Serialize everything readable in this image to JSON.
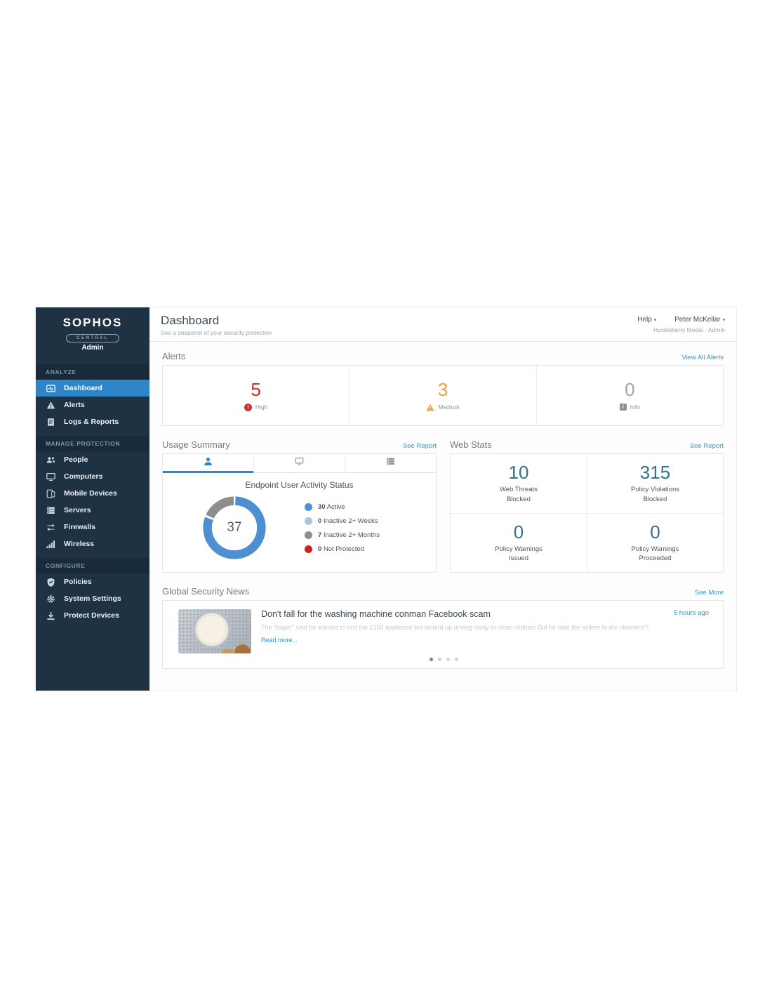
{
  "colors": {
    "sidebar_bg": "#1f3244",
    "active_item": "#2e86c8",
    "link_blue": "#2d9bd8",
    "stat_value": "#35708e"
  },
  "sidebar": {
    "logo": {
      "brand": "SOPHOS",
      "product": "CENTRAL",
      "role": "Admin"
    },
    "sections": [
      {
        "label": "ANALYZE",
        "items": [
          {
            "label": "Dashboard",
            "icon": "dashboard-icon",
            "active": true
          },
          {
            "label": "Alerts",
            "icon": "alert-triangle-icon",
            "active": false
          },
          {
            "label": "Logs & Reports",
            "icon": "logs-icon",
            "active": false
          }
        ]
      },
      {
        "label": "MANAGE PROTECTION",
        "items": [
          {
            "label": "People",
            "icon": "people-icon",
            "active": false
          },
          {
            "label": "Computers",
            "icon": "computer-icon",
            "active": false
          },
          {
            "label": "Mobile Devices",
            "icon": "mobile-devices-icon",
            "active": false
          },
          {
            "label": "Servers",
            "icon": "servers-icon",
            "active": false
          },
          {
            "label": "Firewalls",
            "icon": "firewalls-icon",
            "active": false
          },
          {
            "label": "Wireless",
            "icon": "wireless-icon",
            "active": false
          }
        ]
      },
      {
        "label": "CONFIGURE",
        "items": [
          {
            "label": "Policies",
            "icon": "shield-check-icon",
            "active": false
          },
          {
            "label": "System Settings",
            "icon": "gear-icon",
            "active": false
          },
          {
            "label": "Protect Devices",
            "icon": "download-icon",
            "active": false
          }
        ]
      }
    ]
  },
  "header": {
    "title": "Dashboard",
    "subtitle": "See a snapshot of your security protection",
    "help_label": "Help",
    "user_name": "Peter McKellar",
    "account": "Huckleberry Media · Admin"
  },
  "alerts": {
    "heading": "Alerts",
    "link": "View All Alerts",
    "items": [
      {
        "count": "5",
        "label": "High",
        "color": "#c4312e",
        "icon": "high-severity-icon"
      },
      {
        "count": "3",
        "label": "Medium",
        "color": "#e8a23c",
        "icon": "medium-severity-icon"
      },
      {
        "count": "0",
        "label": "Info",
        "color": "#9ea4a9",
        "icon": "info-severity-icon"
      }
    ]
  },
  "usage_summary": {
    "heading": "Usage Summary",
    "link": "See Report",
    "tabs": [
      {
        "icon": "users-tab-icon",
        "active": true
      },
      {
        "icon": "computers-tab-icon",
        "active": false
      },
      {
        "icon": "servers-tab-icon",
        "active": false
      }
    ]
  },
  "chart_data": {
    "type": "pie",
    "title": "Endpoint User Activity Status",
    "center_total": "37",
    "segments": [
      {
        "label": "Active",
        "value": 30,
        "color": "#4d8fd1"
      },
      {
        "label": "Inactive 2+ Weeks",
        "value": 0,
        "color": "#a9c6e5"
      },
      {
        "label": "Inactive 2+ Months",
        "value": 7,
        "color": "#8d8d8d"
      },
      {
        "label": "Not Protected",
        "value": 0,
        "color": "#cc1f1f"
      }
    ],
    "legend_position": "right",
    "donut_start": "top",
    "donut_direction": "clockwise"
  },
  "web_stats": {
    "heading": "Web Stats",
    "link": "See Report",
    "stats": [
      {
        "value": "10",
        "label1": "Web Threats",
        "label2": "Blocked"
      },
      {
        "value": "315",
        "label1": "Policy Violations",
        "label2": "Blocked"
      },
      {
        "value": "0",
        "label1": "Policy Warnings",
        "label2": "Issued"
      },
      {
        "value": "0",
        "label1": "Policy Warnings",
        "label2": "Proceeded"
      }
    ]
  },
  "news": {
    "heading": "Global Security News",
    "link": "See More",
    "article": {
      "title": "Don't fall for the washing machine conman Facebook scam",
      "time": "5 hours ago",
      "summary": "The \"buyer\" said he wanted to test the £150 appliance but wound up driving away in clean clothes! Did he take the sellers to the cleaners?!",
      "read_more": "Read more..."
    },
    "pagination": {
      "count": 4,
      "active": 0
    }
  }
}
